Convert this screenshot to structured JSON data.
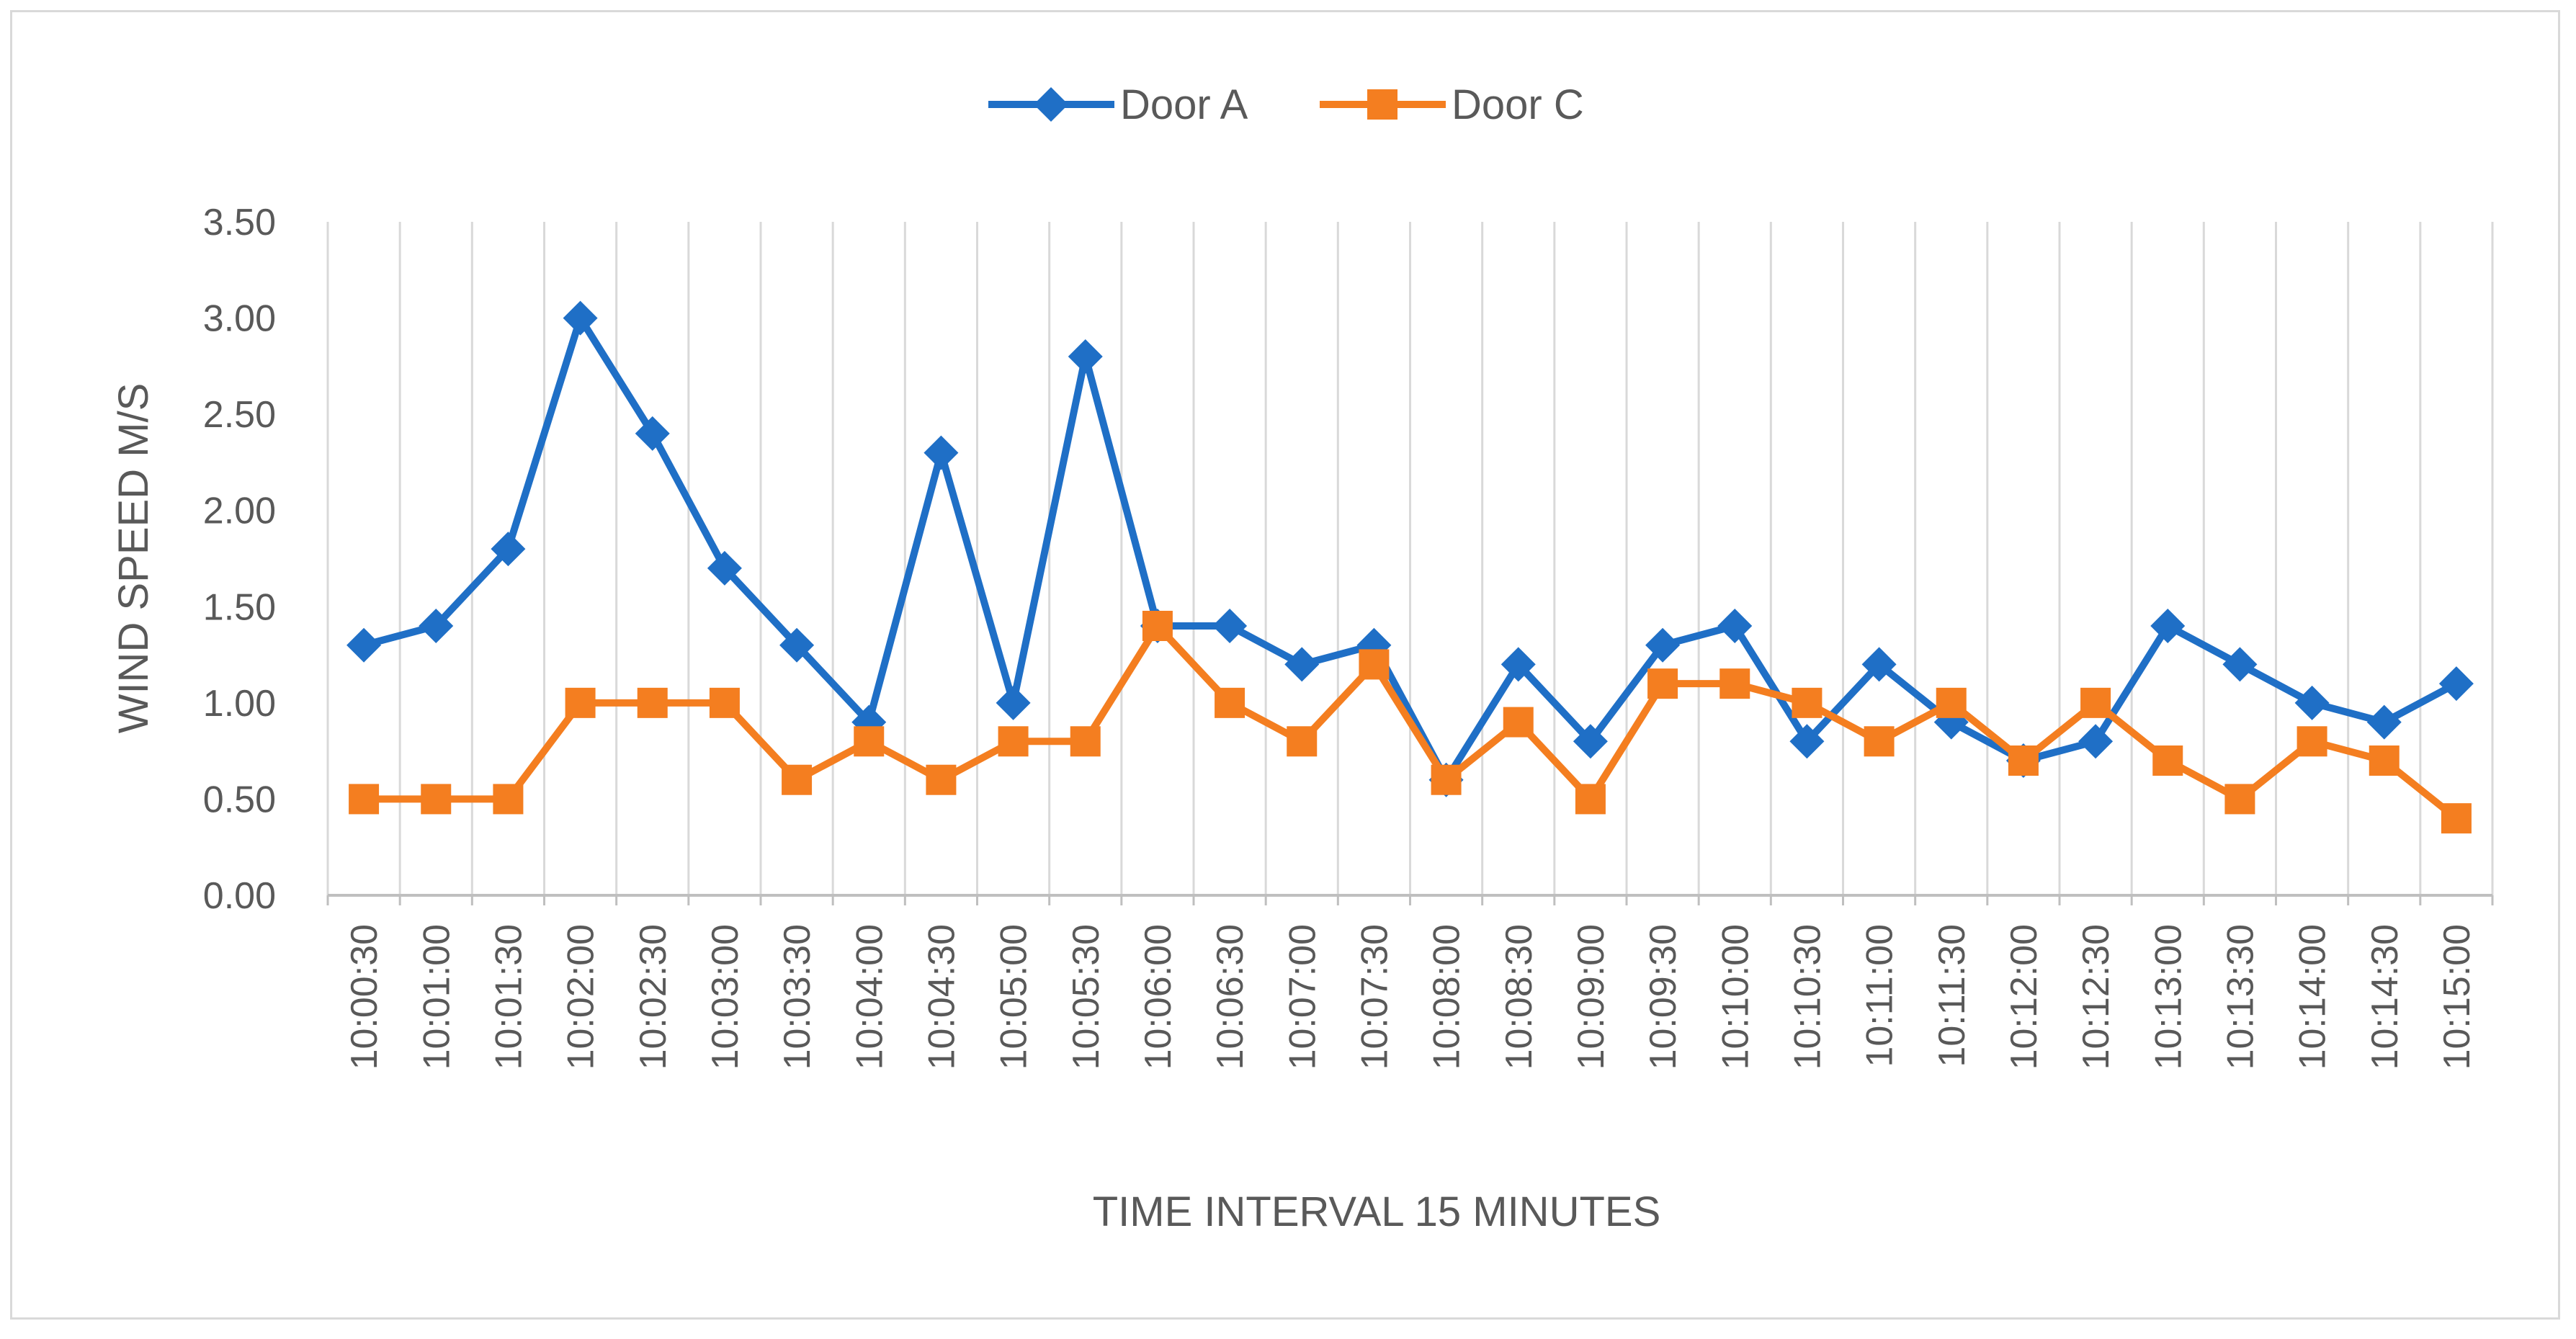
{
  "chart_data": {
    "type": "line",
    "title": "",
    "xlabel": "TIME INTERVAL 15 MINUTES",
    "ylabel": "WIND SPEED M/S",
    "ylim": [
      0,
      3.5
    ],
    "yticks": [
      "0.00",
      "0.50",
      "1.00",
      "1.50",
      "2.00",
      "2.50",
      "3.00",
      "3.50"
    ],
    "ytick_values": [
      0,
      0.5,
      1,
      1.5,
      2,
      2.5,
      3,
      3.5
    ],
    "grid": "vertical",
    "legend": "top-center",
    "categories": [
      "10:00:30",
      "10:01:00",
      "10:01:30",
      "10:02:00",
      "10:02:30",
      "10:03:00",
      "10:03:30",
      "10:04:00",
      "10:04:30",
      "10:05:00",
      "10:05:30",
      "10:06:00",
      "10:06:30",
      "10:07:00",
      "10:07:30",
      "10:08:00",
      "10:08:30",
      "10:09:00",
      "10:09:30",
      "10:10:00",
      "10:10:30",
      "10:11:00",
      "10:11:30",
      "10:12:00",
      "10:12:30",
      "10:13:00",
      "10:13:30",
      "10:14:00",
      "10:14:30",
      "10:15:00"
    ],
    "series": [
      {
        "name": "Door A",
        "color": "#1f6fc6",
        "marker": "diamond",
        "values": [
          1.3,
          1.4,
          1.8,
          3.0,
          2.4,
          1.7,
          1.3,
          0.9,
          2.3,
          1.0,
          2.8,
          1.4,
          1.4,
          1.2,
          1.3,
          0.6,
          1.2,
          0.8,
          1.3,
          1.4,
          0.8,
          1.2,
          0.9,
          0.7,
          0.8,
          1.4,
          1.2,
          1.0,
          0.9,
          1.1
        ]
      },
      {
        "name": "Door C",
        "color": "#f47e20",
        "marker": "square",
        "values": [
          0.5,
          0.5,
          0.5,
          1.0,
          1.0,
          1.0,
          0.6,
          0.8,
          0.6,
          0.8,
          0.8,
          1.4,
          1.0,
          0.8,
          1.2,
          0.6,
          0.9,
          0.5,
          1.1,
          1.1,
          1.0,
          0.8,
          1.0,
          0.7,
          1.0,
          0.7,
          0.5,
          0.8,
          0.7,
          0.4
        ]
      }
    ]
  }
}
